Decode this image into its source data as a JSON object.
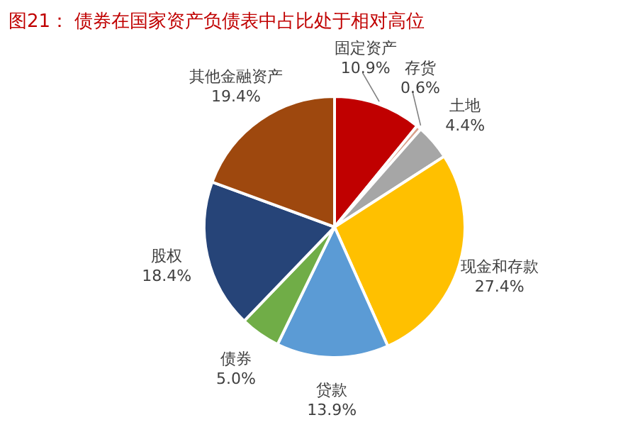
{
  "chart_data": {
    "type": "pie",
    "title": "图21：  债券在国家资产负债表中占比处于相对高位",
    "categories": [
      "固定资产",
      "存货",
      "土地",
      "现金和存款",
      "贷款",
      "债券",
      "股权",
      "其他金融资产"
    ],
    "values": [
      10.9,
      0.6,
      4.4,
      27.4,
      13.9,
      5.0,
      18.4,
      19.4
    ],
    "value_labels": [
      "10.9%",
      "0.6%",
      "4.4%",
      "27.4%",
      "13.9%",
      "5.0%",
      "18.4%",
      "19.4%"
    ],
    "colors": [
      "#c00000",
      "#d9a08a",
      "#a6a6a6",
      "#ffc000",
      "#5b9bd5",
      "#70ad47",
      "#264478",
      "#9e480e"
    ],
    "legend": false
  }
}
